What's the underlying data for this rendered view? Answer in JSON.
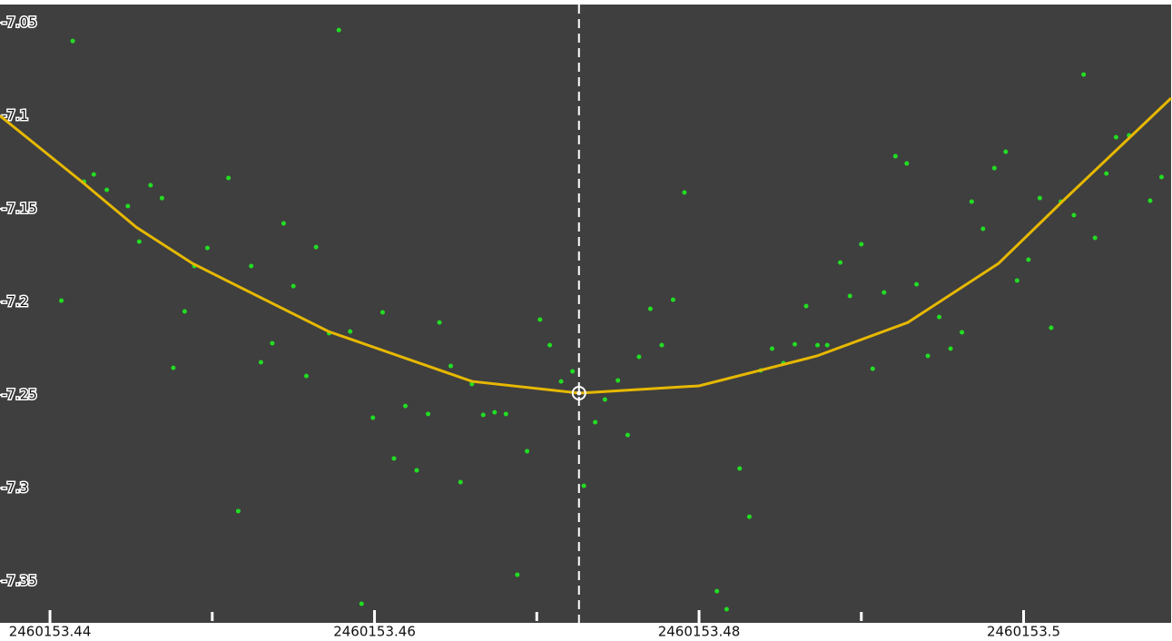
{
  "chart_data": {
    "type": "scatter",
    "xlim": [
      2460153.43692,
      2460153.50909
    ],
    "ylim": [
      -7.3656,
      -7.0402
    ],
    "xticks": [
      2460153.44,
      2460153.46,
      2460153.48,
      2460153.5
    ],
    "x_minor_ticks": [
      2460153.45,
      2460153.47,
      2460153.49
    ],
    "yticks": [
      -7.05,
      -7.1,
      -7.15,
      -7.2,
      -7.25,
      -7.3,
      -7.35
    ],
    "background": "#3f3f3f",
    "series": [
      {
        "color": "#22dd22",
        "x": [
          2460153.4414,
          2460153.4407,
          2460153.4421,
          2460153.4427,
          2460153.4435,
          2460153.4448,
          2460153.4455,
          2460153.4462,
          2460153.4469,
          2460153.4476,
          2460153.4483,
          2460153.4489,
          2460153.4497,
          2460153.451,
          2460153.4516,
          2460153.4524,
          2460153.453,
          2460153.4537,
          2460153.4544,
          2460153.455,
          2460153.4558,
          2460153.4564,
          2460153.4572,
          2460153.4578,
          2460153.4585,
          2460153.4592,
          2460153.4599,
          2460153.4605,
          2460153.4612,
          2460153.4619,
          2460153.4626,
          2460153.4633,
          2460153.464,
          2460153.4647,
          2460153.4653,
          2460153.466,
          2460153.4667,
          2460153.4674,
          2460153.4681,
          2460153.4688,
          2460153.4694,
          2460153.4702,
          2460153.4708,
          2460153.4715,
          2460153.4722,
          2460153.4729,
          2460153.4736,
          2460153.4742,
          2460153.475,
          2460153.4756,
          2460153.4763,
          2460153.477,
          2460153.4777,
          2460153.4784,
          2460153.4791,
          2460153.4811,
          2460153.4817,
          2460153.4825,
          2460153.4831,
          2460153.4838,
          2460153.4845,
          2460153.4852,
          2460153.4859,
          2460153.4866,
          2460153.4873,
          2460153.4879,
          2460153.4887,
          2460153.4893,
          2460153.49,
          2460153.4907,
          2460153.4914,
          2460153.4921,
          2460153.4928,
          2460153.4934,
          2460153.4941,
          2460153.4948,
          2460153.4955,
          2460153.4962,
          2460153.4968,
          2460153.4975,
          2460153.4982,
          2460153.4989,
          2460153.4996,
          2460153.5003,
          2460153.501,
          2460153.5017,
          2460153.5023,
          2460153.5031,
          2460153.5037,
          2460153.5044,
          2460153.5051,
          2460153.5057,
          2460153.5065,
          2460153.5078,
          2460153.5085
        ],
        "values": [
          -7.0598,
          -7.1993,
          -7.1354,
          -7.1315,
          -7.1398,
          -7.1485,
          -7.1676,
          -7.1373,
          -7.1442,
          -7.2354,
          -7.2051,
          -7.1807,
          -7.171,
          -7.1334,
          -7.3124,
          -7.1807,
          -7.2324,
          -7.2222,
          -7.1578,
          -7.1915,
          -7.2398,
          -7.1705,
          -7.2168,
          -7.0539,
          -7.2159,
          -7.3622,
          -7.2622,
          -7.2056,
          -7.2841,
          -7.2559,
          -7.2905,
          -7.2602,
          -7.211,
          -7.2344,
          -7.2968,
          -7.2441,
          -7.2607,
          -7.2593,
          -7.2602,
          -7.3466,
          -7.2802,
          -7.2095,
          -7.2232,
          -7.2427,
          -7.2373,
          -7.2988,
          -7.2646,
          -7.2524,
          -7.2422,
          -7.2715,
          -7.2295,
          -7.2037,
          -7.2232,
          -7.1988,
          -7.1412,
          -7.3554,
          -7.3651,
          -7.2895,
          -7.3154,
          -7.2368,
          -7.2251,
          -7.2329,
          -7.2227,
          -7.2022,
          -7.2232,
          -7.2232,
          -7.1788,
          -7.1968,
          -7.169,
          -7.2359,
          -7.1949,
          -7.1217,
          -7.1256,
          -7.1905,
          -7.229,
          -7.2081,
          -7.2251,
          -7.2163,
          -7.1461,
          -7.1607,
          -7.1281,
          -7.1193,
          -7.1885,
          -7.1773,
          -7.1442,
          -7.2139,
          -7.1461,
          -7.1534,
          -7.0778,
          -7.1656,
          -7.131,
          -7.1115,
          -7.1105,
          -7.1456,
          -7.1329
        ]
      }
    ],
    "fit": {
      "color": "#e6b800",
      "x": [
        2460153.43692,
        2460153.44196,
        2460153.44531,
        2460153.44878,
        2460153.45717,
        2460153.46601,
        2460153.47262,
        2460153.48,
        2460153.48727,
        2460153.49287,
        2460153.49846,
        2460153.50238,
        2460153.50909
      ],
      "values": [
        -7.1,
        -7.1354,
        -7.1598,
        -7.1793,
        -7.2159,
        -7.2427,
        -7.249,
        -7.2451,
        -7.229,
        -7.211,
        -7.1793,
        -7.1461,
        -7.0905
      ]
    },
    "minimum": {
      "x": 2460153.4726,
      "y": -7.249
    }
  }
}
